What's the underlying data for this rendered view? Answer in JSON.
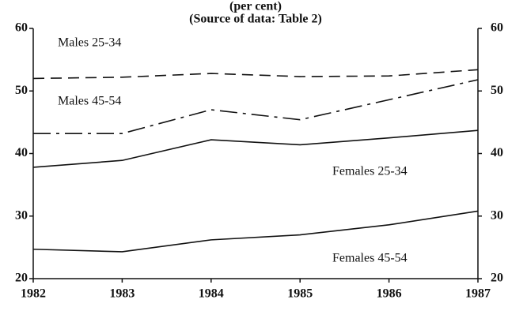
{
  "chart_data": {
    "type": "line",
    "subtitle": "(per cent)",
    "source": "(Source of data: Table 2)",
    "x": [
      1982,
      1983,
      1984,
      1985,
      1986,
      1987
    ],
    "xlim": [
      1982,
      1987
    ],
    "xticks": [
      1982,
      1983,
      1984,
      1985,
      1986,
      1987
    ],
    "ylim": [
      20,
      60
    ],
    "yticks": [
      20,
      30,
      40,
      50,
      60
    ],
    "y2lim": [
      20,
      60
    ],
    "y2ticks": [
      20,
      30,
      40,
      50,
      60
    ],
    "grid": false,
    "series": [
      {
        "name": "Males 25-34",
        "color": "#111111",
        "style": "dashed",
        "values": [
          52.0,
          52.2,
          52.8,
          52.3,
          52.4,
          53.4
        ]
      },
      {
        "name": "Males 45-54",
        "color": "#111111",
        "style": "dash-dot",
        "values": [
          43.2,
          43.2,
          47.0,
          45.4,
          48.6,
          51.8
        ]
      },
      {
        "name": "Females 25-34",
        "color": "#111111",
        "style": "solid",
        "values": [
          37.8,
          38.9,
          42.2,
          41.4,
          42.5,
          43.7
        ]
      },
      {
        "name": "Females 45-54",
        "color": "#111111",
        "style": "solid",
        "values": [
          24.7,
          24.3,
          26.2,
          27.0,
          28.6,
          30.8
        ]
      }
    ]
  }
}
